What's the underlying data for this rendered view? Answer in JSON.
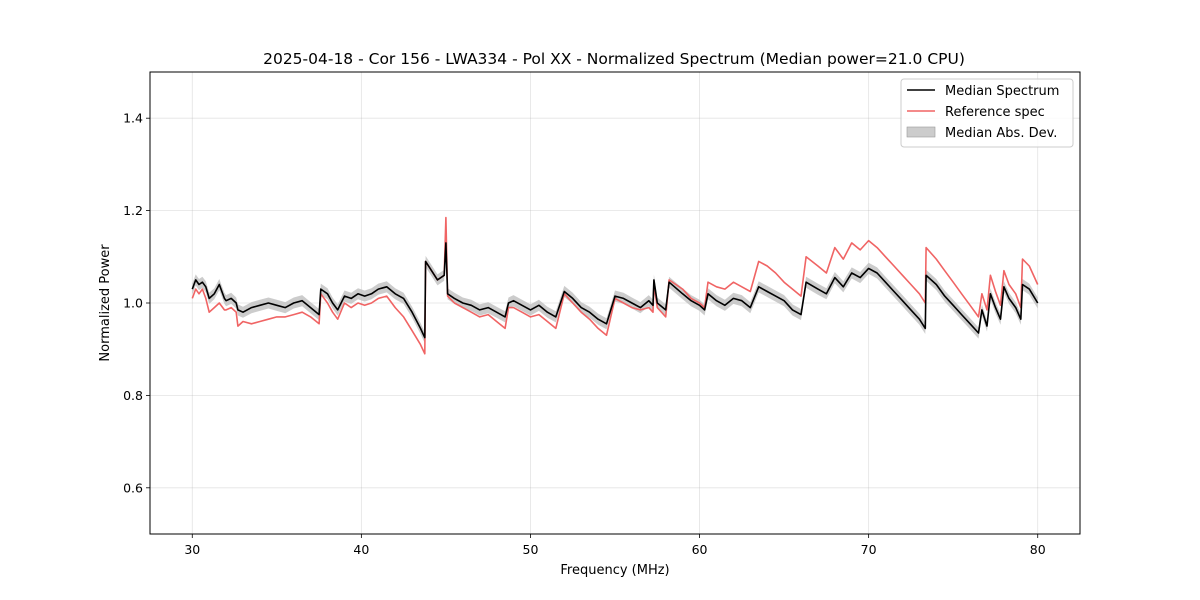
{
  "chart_data": {
    "type": "line",
    "title": "2025-04-18 - Cor 156 - LWA334 - Pol XX - Normalized Spectrum (Median power=21.0 CPU)",
    "xlabel": "Frequency (MHz)",
    "ylabel": "Normalized Power",
    "xlim": [
      27.5,
      82.5
    ],
    "ylim": [
      0.5,
      1.5
    ],
    "xticks": [
      30,
      40,
      50,
      60,
      70,
      80
    ],
    "xtick_labels": [
      "30",
      "40",
      "50",
      "60",
      "70",
      "80"
    ],
    "yticks": [
      0.6,
      0.8,
      1.0,
      1.2,
      1.4
    ],
    "ytick_labels": [
      "0.6",
      "0.8",
      "1.0",
      "1.2",
      "1.4"
    ],
    "grid": true,
    "legend_position": "top-right",
    "series": [
      {
        "name": "Median Spectrum",
        "color": "#000000",
        "x": [
          30.0,
          30.2,
          30.4,
          30.6,
          30.8,
          31.0,
          31.3,
          31.6,
          31.9,
          32.0,
          32.3,
          32.6,
          32.7,
          33.0,
          33.5,
          34.0,
          34.5,
          35.0,
          35.5,
          36.0,
          36.5,
          37.0,
          37.5,
          37.6,
          38.0,
          38.3,
          38.6,
          39.0,
          39.4,
          39.8,
          40.2,
          40.6,
          41.0,
          41.5,
          42.0,
          42.5,
          43.0,
          43.5,
          43.75,
          43.8,
          44.5,
          44.9,
          45.0,
          45.1,
          45.5,
          46.0,
          46.5,
          47.0,
          47.5,
          48.0,
          48.5,
          48.7,
          49.0,
          49.5,
          50.0,
          50.5,
          51.0,
          51.5,
          52.0,
          52.5,
          53.0,
          53.5,
          54.0,
          54.5,
          55.0,
          55.5,
          56.0,
          56.5,
          57.0,
          57.25,
          57.3,
          57.5,
          58.0,
          58.2,
          59.0,
          59.5,
          60.0,
          60.3,
          60.5,
          61.0,
          61.5,
          62.0,
          62.5,
          63.0,
          63.5,
          64.0,
          64.5,
          65.0,
          65.5,
          66.0,
          66.3,
          67.0,
          67.5,
          68.0,
          68.5,
          69.0,
          69.5,
          70.0,
          70.5,
          71.0,
          71.5,
          72.0,
          72.5,
          73.0,
          73.35,
          73.4,
          74.0,
          74.5,
          75.0,
          75.5,
          76.0,
          76.5,
          76.7,
          77.0,
          77.2,
          77.5,
          77.8,
          78.0,
          78.3,
          78.7,
          79.0,
          79.1,
          79.5,
          80.0
        ],
        "values": [
          1.03,
          1.05,
          1.04,
          1.045,
          1.035,
          1.01,
          1.02,
          1.04,
          1.01,
          1.005,
          1.01,
          1.0,
          0.985,
          0.98,
          0.99,
          0.995,
          1.0,
          0.995,
          0.99,
          1.0,
          1.005,
          0.99,
          0.975,
          1.03,
          1.02,
          1.0,
          0.985,
          1.015,
          1.01,
          1.02,
          1.015,
          1.02,
          1.03,
          1.035,
          1.02,
          1.01,
          0.98,
          0.945,
          0.925,
          1.09,
          1.05,
          1.06,
          1.13,
          1.02,
          1.01,
          1.0,
          0.995,
          0.985,
          0.99,
          0.98,
          0.97,
          1.0,
          1.005,
          0.995,
          0.985,
          0.995,
          0.98,
          0.97,
          1.025,
          1.01,
          0.99,
          0.98,
          0.965,
          0.955,
          1.015,
          1.01,
          1.0,
          0.99,
          1.005,
          0.995,
          1.05,
          1.0,
          0.985,
          1.045,
          1.02,
          1.005,
          0.995,
          0.985,
          1.02,
          1.005,
          0.995,
          1.01,
          1.005,
          0.99,
          1.035,
          1.025,
          1.015,
          1.005,
          0.985,
          0.975,
          1.045,
          1.03,
          1.02,
          1.055,
          1.035,
          1.065,
          1.055,
          1.075,
          1.065,
          1.045,
          1.025,
          1.005,
          0.985,
          0.965,
          0.945,
          1.06,
          1.04,
          1.015,
          0.995,
          0.975,
          0.955,
          0.935,
          0.985,
          0.95,
          1.02,
          0.99,
          0.965,
          1.035,
          1.01,
          0.99,
          0.965,
          1.04,
          1.03,
          1.0
        ]
      },
      {
        "name": "Reference spec",
        "color": "#f06464",
        "x": [
          30.0,
          30.2,
          30.4,
          30.6,
          30.8,
          31.0,
          31.3,
          31.6,
          31.9,
          32.0,
          32.3,
          32.6,
          32.7,
          33.0,
          33.5,
          34.0,
          34.5,
          35.0,
          35.5,
          36.0,
          36.5,
          37.0,
          37.5,
          37.6,
          38.0,
          38.3,
          38.6,
          39.0,
          39.4,
          39.8,
          40.2,
          40.6,
          41.0,
          41.5,
          42.0,
          42.5,
          43.0,
          43.5,
          43.75,
          43.8,
          44.5,
          44.9,
          45.0,
          45.1,
          45.5,
          46.0,
          46.5,
          47.0,
          47.5,
          48.0,
          48.5,
          48.7,
          49.0,
          49.5,
          50.0,
          50.5,
          51.0,
          51.5,
          52.0,
          52.5,
          53.0,
          53.5,
          54.0,
          54.5,
          55.0,
          55.5,
          56.0,
          56.5,
          57.0,
          57.25,
          57.3,
          57.5,
          58.0,
          58.2,
          59.0,
          59.5,
          60.0,
          60.3,
          60.5,
          61.0,
          61.5,
          62.0,
          62.5,
          63.0,
          63.5,
          64.0,
          64.5,
          65.0,
          65.5,
          66.0,
          66.3,
          67.0,
          67.5,
          68.0,
          68.5,
          69.0,
          69.5,
          70.0,
          70.5,
          71.0,
          71.5,
          72.0,
          72.5,
          73.0,
          73.35,
          73.4,
          74.0,
          74.5,
          75.0,
          75.5,
          76.0,
          76.5,
          76.7,
          77.0,
          77.2,
          77.5,
          77.8,
          78.0,
          78.3,
          78.7,
          79.0,
          79.1,
          79.5,
          80.0
        ],
        "values": [
          1.01,
          1.03,
          1.02,
          1.03,
          1.01,
          0.98,
          0.99,
          1.0,
          0.985,
          0.985,
          0.99,
          0.98,
          0.95,
          0.96,
          0.955,
          0.96,
          0.965,
          0.97,
          0.97,
          0.975,
          0.98,
          0.97,
          0.955,
          1.02,
          1.0,
          0.98,
          0.965,
          1.0,
          0.99,
          1.0,
          0.995,
          1.0,
          1.01,
          1.015,
          0.99,
          0.97,
          0.94,
          0.91,
          0.89,
          1.09,
          1.05,
          1.06,
          1.185,
          1.015,
          1.0,
          0.99,
          0.98,
          0.97,
          0.975,
          0.96,
          0.945,
          0.99,
          0.99,
          0.98,
          0.97,
          0.975,
          0.96,
          0.945,
          1.02,
          1.0,
          0.98,
          0.965,
          0.945,
          0.93,
          1.01,
          1.0,
          0.99,
          0.985,
          0.99,
          0.98,
          1.04,
          0.99,
          0.97,
          1.05,
          1.03,
          1.01,
          1.0,
          0.99,
          1.045,
          1.035,
          1.03,
          1.045,
          1.035,
          1.025,
          1.09,
          1.08,
          1.065,
          1.045,
          1.03,
          1.015,
          1.1,
          1.08,
          1.065,
          1.12,
          1.095,
          1.13,
          1.115,
          1.135,
          1.12,
          1.1,
          1.08,
          1.06,
          1.04,
          1.02,
          1.0,
          1.12,
          1.095,
          1.07,
          1.045,
          1.02,
          0.995,
          0.97,
          1.02,
          0.985,
          1.06,
          1.025,
          0.995,
          1.07,
          1.04,
          1.02,
          0.99,
          1.095,
          1.08,
          1.04
        ]
      },
      {
        "name": "Median Abs. Dev.",
        "color": "#bfbfbf",
        "band_halfwidth": 0.012
      }
    ]
  }
}
